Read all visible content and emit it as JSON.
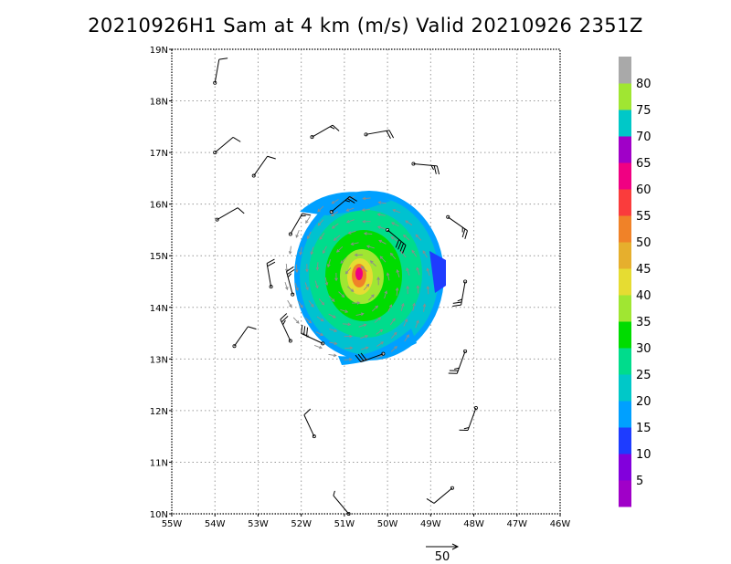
{
  "title": "20210926H1 Sam at 4 km (m/s) Valid 20210926  2351Z",
  "map": {
    "lon_range": [
      -55,
      -46
    ],
    "lat_range": [
      10,
      19
    ],
    "lon_ticks": [
      {
        "value": -55,
        "label": "55W"
      },
      {
        "value": -54,
        "label": "54W"
      },
      {
        "value": -53,
        "label": "53W"
      },
      {
        "value": -52,
        "label": "52W"
      },
      {
        "value": -51,
        "label": "51W"
      },
      {
        "value": -50,
        "label": "50W"
      },
      {
        "value": -49,
        "label": "49W"
      },
      {
        "value": -48,
        "label": "48W"
      },
      {
        "value": -47,
        "label": "47W"
      },
      {
        "value": -46,
        "label": "46W"
      }
    ],
    "lat_ticks": [
      {
        "value": 10,
        "label": "10N"
      },
      {
        "value": 11,
        "label": "11N"
      },
      {
        "value": 12,
        "label": "12N"
      },
      {
        "value": 13,
        "label": "13N"
      },
      {
        "value": 14,
        "label": "14N"
      },
      {
        "value": 15,
        "label": "15N"
      },
      {
        "value": 16,
        "label": "16N"
      },
      {
        "value": 17,
        "label": "17N"
      },
      {
        "value": 18,
        "label": "18N"
      },
      {
        "value": 19,
        "label": "19N"
      }
    ],
    "grid": "dotted",
    "storm_center": {
      "lon": -50.7,
      "lat": 14.55
    }
  },
  "colorbar": {
    "labels": [
      "5",
      "10",
      "15",
      "20",
      "25",
      "30",
      "35",
      "40",
      "45",
      "50",
      "55",
      "60",
      "65",
      "70",
      "75",
      "80"
    ],
    "colors": [
      "#a000c8",
      "#8200dc",
      "#1e3cff",
      "#00a0ff",
      "#00c8c8",
      "#00dc8c",
      "#00dc00",
      "#a0e632",
      "#e6dc32",
      "#e6af2d",
      "#f08228",
      "#fa3c3c",
      "#f00082",
      "#a000c8",
      "#00c8c8",
      "#a0e632",
      "#a9a9a9"
    ]
  },
  "reference_vector": {
    "label": "50"
  },
  "barbs": [
    {
      "lon": -54.0,
      "lat": 18.35,
      "dir": 10,
      "spd": 10
    },
    {
      "lon": -54.0,
      "lat": 17.0,
      "dir": 50,
      "spd": 10
    },
    {
      "lon": -53.95,
      "lat": 15.7,
      "dir": 60,
      "spd": 10
    },
    {
      "lon": -53.1,
      "lat": 16.55,
      "dir": 35,
      "spd": 10
    },
    {
      "lon": -53.55,
      "lat": 13.25,
      "dir": 35,
      "spd": 10
    },
    {
      "lon": -52.7,
      "lat": 14.4,
      "dir": 350,
      "spd": 20
    },
    {
      "lon": -52.2,
      "lat": 14.25,
      "dir": 345,
      "spd": 25
    },
    {
      "lon": -52.25,
      "lat": 13.35,
      "dir": 335,
      "spd": 25
    },
    {
      "lon": -52.25,
      "lat": 15.42,
      "dir": 30,
      "spd": 15
    },
    {
      "lon": -51.75,
      "lat": 17.3,
      "dir": 60,
      "spd": 15
    },
    {
      "lon": -51.3,
      "lat": 15.85,
      "dir": 50,
      "spd": 25
    },
    {
      "lon": -50.5,
      "lat": 17.35,
      "dir": 80,
      "spd": 20
    },
    {
      "lon": -49.4,
      "lat": 16.78,
      "dir": 95,
      "spd": 25
    },
    {
      "lon": -48.6,
      "lat": 15.75,
      "dir": 125,
      "spd": 25
    },
    {
      "lon": -50.0,
      "lat": 15.5,
      "dir": 130,
      "spd": 40
    },
    {
      "lon": -48.2,
      "lat": 14.5,
      "dir": 190,
      "spd": 25
    },
    {
      "lon": -48.2,
      "lat": 13.15,
      "dir": 200,
      "spd": 25
    },
    {
      "lon": -47.95,
      "lat": 12.05,
      "dir": 200,
      "spd": 15
    },
    {
      "lon": -48.5,
      "lat": 10.5,
      "dir": 230,
      "spd": 10
    },
    {
      "lon": -50.9,
      "lat": 10.0,
      "dir": 320,
      "spd": 5
    },
    {
      "lon": -51.7,
      "lat": 11.5,
      "dir": 335,
      "spd": 10
    },
    {
      "lon": -51.5,
      "lat": 13.3,
      "dir": 295,
      "spd": 30
    },
    {
      "lon": -50.1,
      "lat": 13.1,
      "dir": 250,
      "spd": 30
    }
  ]
}
